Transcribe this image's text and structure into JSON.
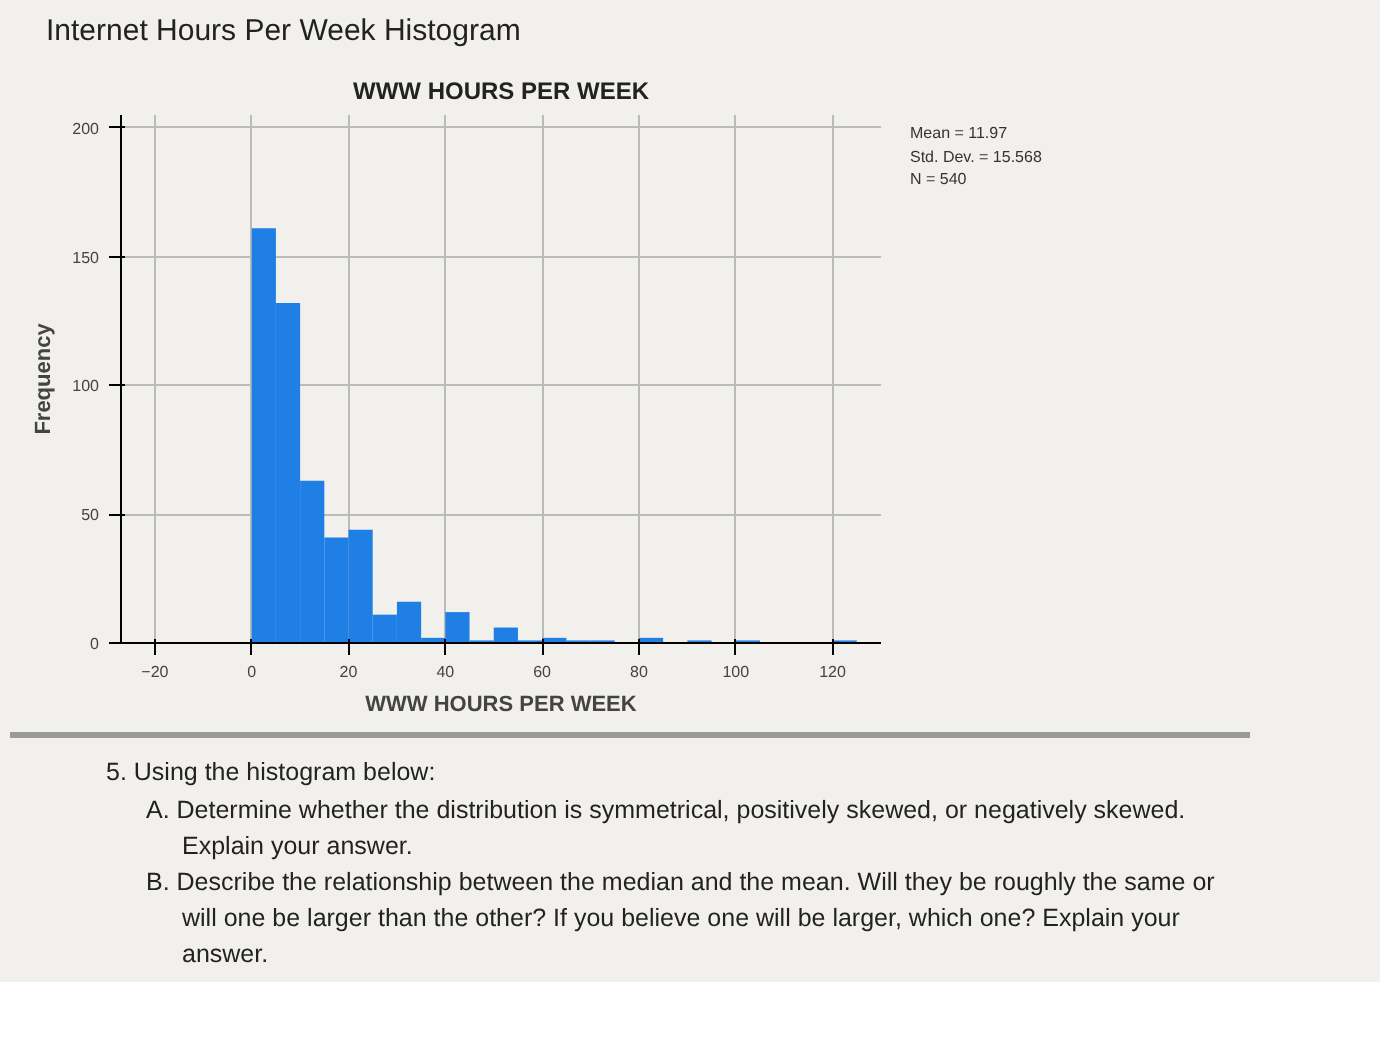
{
  "chart_data": {
    "type": "histogram",
    "title": "Internet Hours Per Week Histogram",
    "subtitle": "WWW HOURS PER WEEK",
    "xlabel": "WWW HOURS PER WEEK",
    "ylabel": "Frequency",
    "bins": [
      0,
      5,
      10,
      15,
      20,
      25,
      30,
      35,
      40,
      45,
      50,
      55,
      60,
      65,
      70,
      75,
      80,
      85,
      90,
      95,
      100,
      105,
      110,
      115,
      120,
      125
    ],
    "values": [
      161,
      132,
      63,
      41,
      44,
      11,
      16,
      2,
      12,
      1,
      6,
      1,
      2,
      1,
      1,
      0,
      2,
      0,
      1,
      0,
      1,
      0,
      0,
      0,
      1
    ],
    "color": "#1f7fe5",
    "xlim": [
      -27,
      130
    ],
    "ylim": [
      0,
      205
    ],
    "xticks": [
      -20,
      0,
      20,
      40,
      60,
      80,
      100,
      120
    ],
    "yticks": [
      0,
      50,
      100,
      150,
      200
    ],
    "grid": true,
    "annotations": [
      "Mean = 11.97\nStd. Dev. = 15.568\nN = 540",
      "5. Using the histogram below:",
      "A. Determine whether the distribution is symmetrical, positively skewed, or negatively skewed. Explain your answer.",
      "B. Describe the relationship between the median and the mean. Will they be roughly the same or will one be larger than the other? If you believe one will be larger, which one? Explain your answer."
    ]
  }
}
